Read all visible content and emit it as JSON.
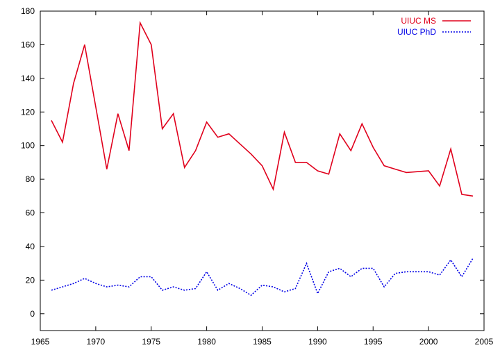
{
  "chart_data": {
    "type": "line",
    "xlim": [
      1965,
      2005
    ],
    "ylim": [
      -10,
      180
    ],
    "xticks": [
      1965,
      1970,
      1975,
      1980,
      1985,
      1990,
      1995,
      2000,
      2005
    ],
    "yticks": [
      0,
      20,
      40,
      60,
      80,
      100,
      120,
      140,
      160,
      180
    ],
    "grid": false,
    "legend_position": "top-right",
    "x": [
      1966,
      1967,
      1968,
      1969,
      1970,
      1971,
      1972,
      1973,
      1974,
      1975,
      1976,
      1977,
      1978,
      1979,
      1980,
      1981,
      1982,
      1983,
      1984,
      1985,
      1986,
      1987,
      1988,
      1989,
      1990,
      1991,
      1992,
      1993,
      1994,
      1995,
      1996,
      1997,
      1998,
      1999,
      2000,
      2001,
      2002,
      2003,
      2004
    ],
    "series": [
      {
        "name": "UIUC MS",
        "color": "#e0001c",
        "style": "solid",
        "values": [
          115,
          102,
          137,
          160,
          123,
          86,
          119,
          97,
          173,
          160,
          110,
          119,
          87,
          97,
          114,
          105,
          107,
          101,
          95,
          88,
          74,
          108,
          90,
          90,
          85,
          83,
          107,
          97,
          113,
          99,
          88,
          86,
          84,
          84.5,
          85,
          76,
          98,
          71,
          70
        ]
      },
      {
        "name": "UIUC PhD",
        "color": "#0000e6",
        "style": "dotted",
        "values": [
          14,
          16,
          18,
          21,
          18,
          16,
          17,
          16,
          22,
          22,
          14,
          16,
          14,
          15,
          25,
          14,
          18,
          15,
          11,
          17,
          16,
          13,
          15,
          30,
          12,
          25,
          27,
          22,
          27,
          27,
          16,
          24,
          25,
          25,
          25,
          23,
          32,
          22,
          33
        ]
      }
    ]
  }
}
